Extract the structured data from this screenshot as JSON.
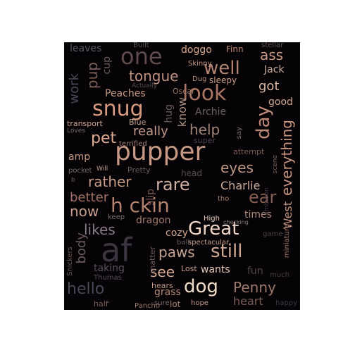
{
  "words": [
    {
      "text": "af",
      "color": "#3a3540",
      "size": 46
    },
    {
      "text": "pupper",
      "color": "#c89a86",
      "size": 36
    },
    {
      "text": "Great",
      "color": "#f0d6c8",
      "size": 26
    },
    {
      "text": "dog",
      "color": "#f2dcc8",
      "size": 26
    },
    {
      "text": "snug",
      "color": "#d69a80",
      "size": 30
    },
    {
      "text": "look",
      "color": "#a97665",
      "size": 30
    },
    {
      "text": "one",
      "color": "#5e4a4a",
      "size": 32
    },
    {
      "text": "well",
      "color": "#b28372",
      "size": 26
    },
    {
      "text": "h ckin",
      "color": "#b38370",
      "size": 28
    },
    {
      "text": "still",
      "color": "#cfa896",
      "size": 26
    },
    {
      "text": "rare",
      "color": "#cfb0a2",
      "size": 24
    },
    {
      "text": "tongue",
      "color": "#c09080",
      "size": 20
    },
    {
      "text": "day",
      "color": "#bd8a78",
      "size": 26
    },
    {
      "text": "ear",
      "color": "#865e54",
      "size": 24
    },
    {
      "text": "everything",
      "color": "#c79580",
      "size": 20
    },
    {
      "text": "pet",
      "color": "#e0ab92",
      "size": 22
    },
    {
      "text": "really",
      "color": "#c09a8b",
      "size": 18
    },
    {
      "text": "help",
      "color": "#a18579",
      "size": 20
    },
    {
      "text": "rather",
      "color": "#c59a86",
      "size": 20
    },
    {
      "text": "eyes",
      "color": "#bc9787",
      "size": 20
    },
    {
      "text": "Charlie",
      "color": "#cdac9b",
      "size": 16
    },
    {
      "text": "better",
      "color": "#a07060",
      "size": 18
    },
    {
      "text": "now",
      "color": "#c9a08f",
      "size": 20
    },
    {
      "text": "likes",
      "color": "#8a7a86",
      "size": 20
    },
    {
      "text": "paws",
      "color": "#c4a393",
      "size": 20
    },
    {
      "text": "see",
      "color": "#d6aa94",
      "size": 20
    },
    {
      "text": "hello",
      "color": "#4a4656",
      "size": 22
    },
    {
      "text": "body",
      "color": "#6c5a5e",
      "size": 18
    },
    {
      "text": "Penny",
      "color": "#9f7a6c",
      "size": 20
    },
    {
      "text": "heart",
      "color": "#7b5e58",
      "size": 16
    },
    {
      "text": "grass",
      "color": "#b88a76",
      "size": 14
    },
    {
      "text": "lot",
      "color": "#a98273",
      "size": 12
    },
    {
      "text": "hope",
      "color": "#c59d8b",
      "size": 10
    },
    {
      "text": "wants",
      "color": "#e5c7b8",
      "size": 14
    },
    {
      "text": "fun",
      "color": "#57434a",
      "size": 14
    },
    {
      "text": "times",
      "color": "#b18a7a",
      "size": 14
    },
    {
      "text": "cozy",
      "color": "#d0a690",
      "size": 14
    },
    {
      "text": "dragon",
      "color": "#a07b6d",
      "size": 14
    },
    {
      "text": "slip",
      "color": "#7a5a52",
      "size": 14
    },
    {
      "text": "High",
      "color": "#e8cfc1",
      "size": 10
    },
    {
      "text": "tho",
      "color": "#a48070",
      "size": 10
    },
    {
      "text": "ball",
      "color": "#6a5a5e",
      "size": 10
    },
    {
      "text": "spectacular",
      "color": "#c9a090",
      "size": 10
    },
    {
      "text": "matter",
      "color": "#6e5c5c",
      "size": 11
    },
    {
      "text": "Lost",
      "color": "#c29a88",
      "size": 11
    },
    {
      "text": "hears",
      "color": "#bf9685",
      "size": 11
    },
    {
      "text": "sure",
      "color": "#7c6a6e",
      "size": 10
    },
    {
      "text": "Pancho",
      "color": "#9a7868",
      "size": 10
    },
    {
      "text": "half",
      "color": "#7a5e58",
      "size": 11
    },
    {
      "text": "happy",
      "color": "#3c3846",
      "size": 10
    },
    {
      "text": "much",
      "color": "#4a3e44",
      "size": 10
    },
    {
      "text": "West",
      "color": "#c4957e",
      "size": 16
    },
    {
      "text": "miniature",
      "color": "#a07a68",
      "size": 10
    },
    {
      "text": "game",
      "color": "#4c4048",
      "size": 10
    },
    {
      "text": "ambition",
      "color": "#3e3640",
      "size": 9
    },
    {
      "text": "scene",
      "color": "#7e6258",
      "size": 9
    },
    {
      "text": "attempt",
      "color": "#7a5a52",
      "size": 11
    },
    {
      "text": "say",
      "color": "#7c6c74",
      "size": 10
    },
    {
      "text": "super",
      "color": "#4a4250",
      "size": 11
    },
    {
      "text": "Archie",
      "color": "#6e5e64",
      "size": 14
    },
    {
      "text": "know",
      "color": "#a89080",
      "size": 16
    },
    {
      "text": "hug",
      "color": "#6e5c5e",
      "size": 14
    },
    {
      "text": "Oscar",
      "color": "#9e7a6a",
      "size": 11
    },
    {
      "text": "good",
      "color": "#d2a892",
      "size": 14
    },
    {
      "text": "got",
      "color": "#d8b6a4",
      "size": 18
    },
    {
      "text": "Jack",
      "color": "#c8a898",
      "size": 14
    },
    {
      "text": "ass",
      "color": "#c89a86",
      "size": 20
    },
    {
      "text": "sleepy",
      "color": "#c89a84",
      "size": 12
    },
    {
      "text": "Dug",
      "color": "#b48e7c",
      "size": 10
    },
    {
      "text": "Skinny",
      "color": "#c59a84",
      "size": 10
    },
    {
      "text": "Actually",
      "color": "#5a4a4c",
      "size": 9
    },
    {
      "text": "Built",
      "color": "#5a4e56",
      "size": 10
    },
    {
      "text": "stellar",
      "color": "#5e5058",
      "size": 10
    },
    {
      "text": "Finn",
      "color": "#c08870",
      "size": 12
    },
    {
      "text": "doggo",
      "color": "#d8a88e",
      "size": 14
    },
    {
      "text": "leaves",
      "color": "#5a5668",
      "size": 14
    },
    {
      "text": "pup",
      "color": "#7a5e58",
      "size": 20
    },
    {
      "text": "cup",
      "color": "#6e5a5e",
      "size": 14
    },
    {
      "text": "work",
      "color": "#4a4658",
      "size": 18
    },
    {
      "text": "Peaches",
      "color": "#c89a86",
      "size": 14
    },
    {
      "text": "Blue",
      "color": "#c8a898",
      "size": 11
    },
    {
      "text": "transport",
      "color": "#d2a690",
      "size": 11
    },
    {
      "text": "Loves",
      "color": "#7a6a72",
      "size": 9
    },
    {
      "text": "terrified",
      "color": "#9e8076",
      "size": 10
    },
    {
      "text": "amp",
      "color": "#c89a84",
      "size": 14
    },
    {
      "text": "pocket",
      "color": "#7a6a68",
      "size": 10
    },
    {
      "text": "Will",
      "color": "#c8a090",
      "size": 9
    },
    {
      "text": "Pretty",
      "color": "#6a5a60",
      "size": 11
    },
    {
      "text": "head",
      "color": "#5a4e52",
      "size": 12
    },
    {
      "text": "keep",
      "color": "#7a6a6e",
      "size": 10
    },
    {
      "text": "checking",
      "color": "#8a7a7a",
      "size": 8
    },
    {
      "text": "taking",
      "color": "#5a5060",
      "size": 14
    },
    {
      "text": "Thumas",
      "color": "#5a4e58",
      "size": 10
    },
    {
      "text": "Snickers",
      "color": "#6e5a52",
      "size": 10
    },
    {
      "text": "b",
      "color": "#6a5a5e",
      "size": 9
    }
  ]
}
